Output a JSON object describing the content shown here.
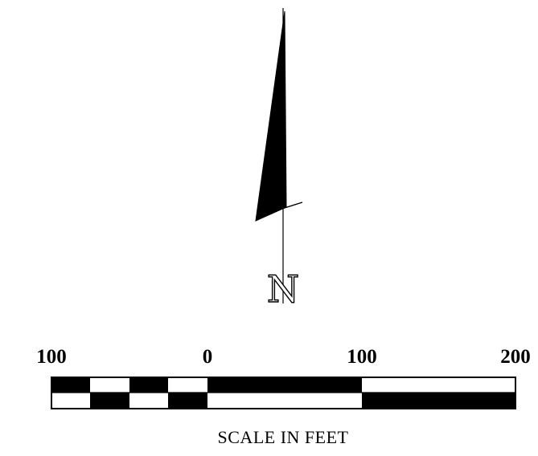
{
  "north_arrow": {
    "letter": "N",
    "fill_color": "#000000"
  },
  "scale_bar": {
    "tick_labels": [
      "100",
      "0",
      "100",
      "200"
    ],
    "caption": "SCALE IN FEET",
    "colors": {
      "dark": "#000000",
      "light": "#ffffff"
    }
  }
}
